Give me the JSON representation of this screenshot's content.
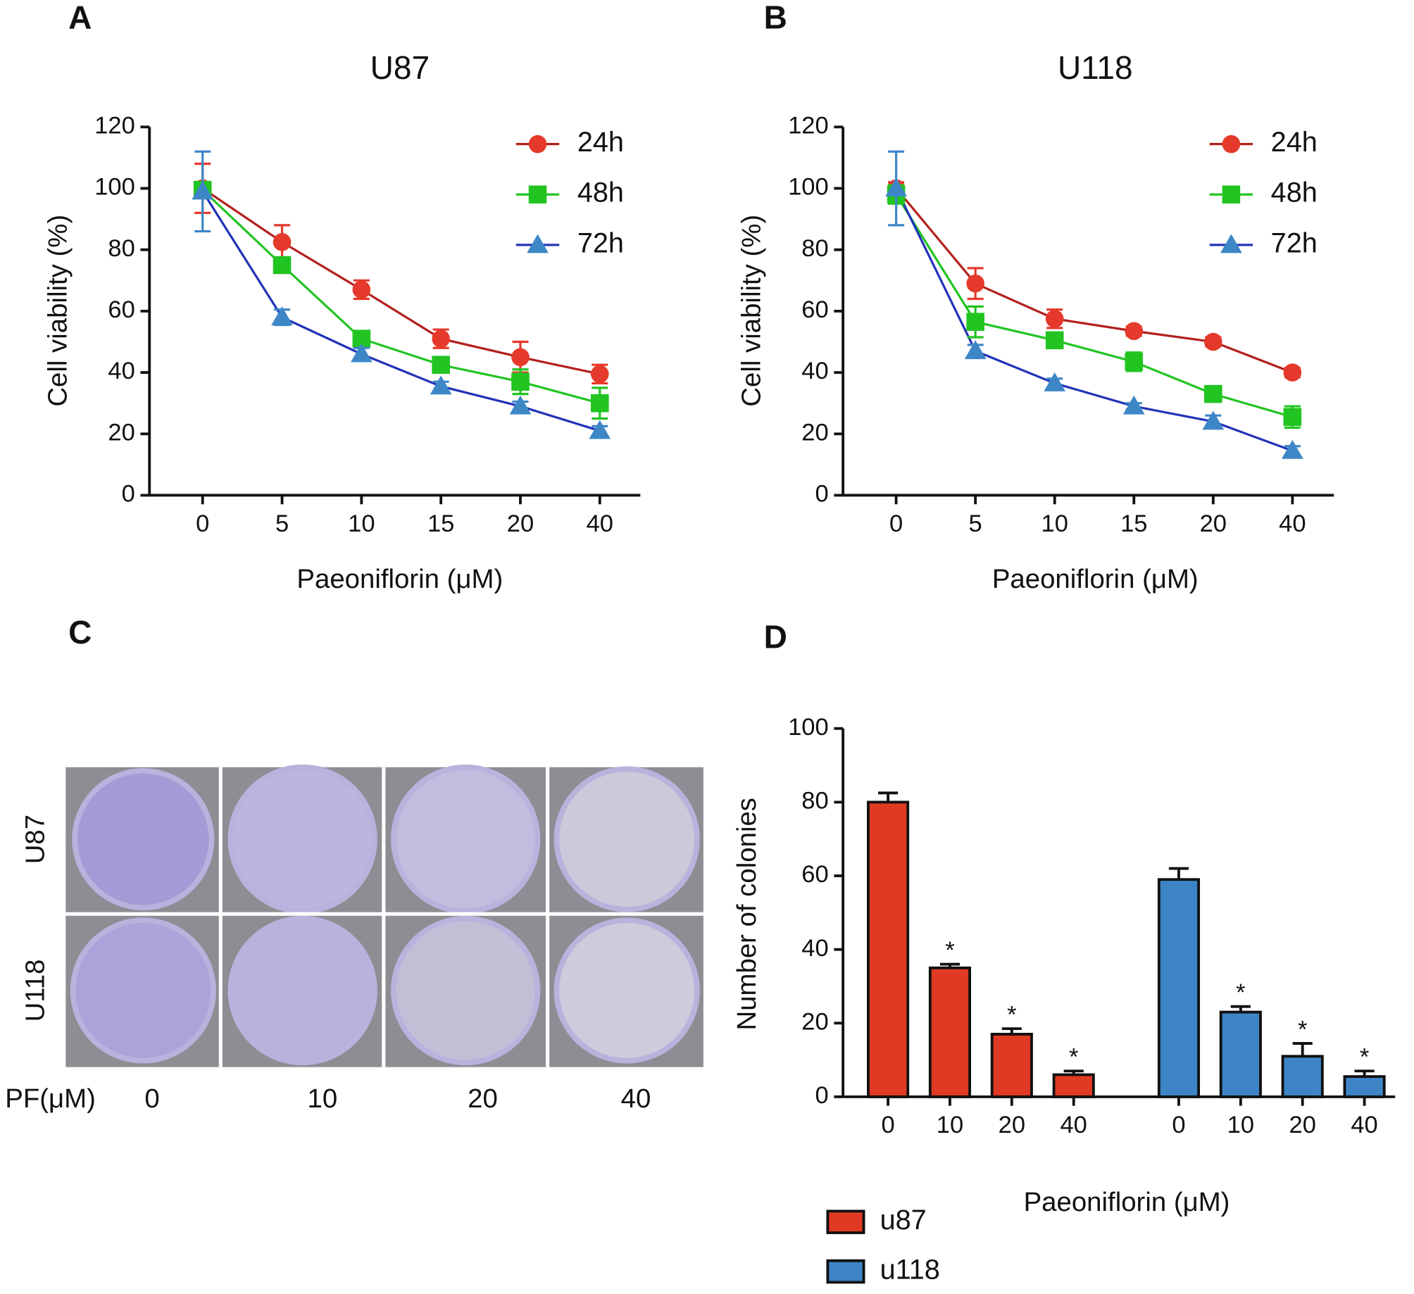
{
  "chart_data": [
    {
      "type": "line",
      "label": "A",
      "title": "U87",
      "x_label": "Paeoniflorin (μM)",
      "y_label": "Cell viability (%)",
      "categories": [
        "0",
        "5",
        "10",
        "15",
        "20",
        "40"
      ],
      "ylim": [
        0,
        120
      ],
      "yticks": [
        0,
        20,
        40,
        60,
        80,
        100,
        120
      ],
      "series": [
        {
          "name": "24h",
          "color": "#e5392b",
          "line_color": "#b3201c",
          "marker": "circle",
          "values": [
            100,
            82.5,
            67,
            51,
            45,
            39.5
          ],
          "errors": [
            8,
            5.5,
            3,
            3,
            5,
            3
          ]
        },
        {
          "name": "48h",
          "color": "#22c422",
          "line_color": "#22c422",
          "marker": "square",
          "values": [
            99.5,
            75,
            51,
            42.5,
            37,
            30
          ],
          "errors": [
            2,
            2,
            2,
            2,
            4,
            5
          ]
        },
        {
          "name": "72h",
          "color": "#3d87c7",
          "line_color": "#2233b8",
          "marker": "triangle",
          "values": [
            99,
            58,
            46,
            35.5,
            29,
            21
          ],
          "errors": [
            13,
            2.5,
            2,
            1.5,
            1.5,
            1.5
          ]
        }
      ]
    },
    {
      "type": "line",
      "label": "B",
      "title": "U118",
      "x_label": "Paeoniflorin (μM)",
      "y_label": "Cell viability (%)",
      "categories": [
        "0",
        "5",
        "10",
        "15",
        "20",
        "40"
      ],
      "ylim": [
        0,
        120
      ],
      "yticks": [
        0,
        20,
        40,
        60,
        80,
        100,
        120
      ],
      "series": [
        {
          "name": "24h",
          "color": "#e5392b",
          "line_color": "#b3201c",
          "marker": "circle",
          "values": [
            100,
            69,
            57.5,
            53.5,
            50,
            40
          ],
          "errors": [
            2,
            5,
            3,
            1.5,
            1.5,
            1.5
          ]
        },
        {
          "name": "48h",
          "color": "#22c422",
          "line_color": "#22c422",
          "marker": "square",
          "values": [
            98,
            56.5,
            50.5,
            43.5,
            33,
            25.5
          ],
          "errors": [
            3,
            5,
            2,
            3,
            1.5,
            3.5
          ]
        },
        {
          "name": "72h",
          "color": "#3d87c7",
          "line_color": "#2233b8",
          "marker": "triangle",
          "values": [
            100,
            47,
            36.5,
            29,
            24,
            14.5
          ],
          "errors": [
            12,
            2,
            1.5,
            1,
            2,
            1.5
          ]
        }
      ]
    },
    {
      "type": "bar",
      "label": "D",
      "x_label": "Paeoniflorin (μM)",
      "y_label": "Number of colonies",
      "categories": [
        "0",
        "10",
        "20",
        "40",
        "0",
        "10",
        "20",
        "40"
      ],
      "ylim": [
        0,
        100
      ],
      "yticks": [
        0,
        20,
        40,
        60,
        80,
        100
      ],
      "significance": [
        null,
        "*",
        "*",
        "*",
        null,
        "*",
        "*",
        "*"
      ],
      "series": [
        {
          "name": "u87",
          "color": "#e03a24",
          "values": [
            80,
            35,
            17,
            6,
            null,
            null,
            null,
            null
          ],
          "errors": [
            2.5,
            1,
            1.5,
            1,
            null,
            null,
            null,
            null
          ]
        },
        {
          "name": "u118",
          "color": "#3d85c6",
          "values": [
            null,
            null,
            null,
            null,
            59,
            23,
            11,
            5.5
          ],
          "errors": [
            null,
            null,
            null,
            null,
            3,
            1.5,
            3.5,
            1.5
          ]
        }
      ]
    }
  ],
  "panel_c": {
    "label": "C",
    "rows": [
      "U87",
      "U118"
    ],
    "axis_label": "PF(μM)",
    "doses": [
      "0",
      "10",
      "20",
      "40"
    ]
  }
}
